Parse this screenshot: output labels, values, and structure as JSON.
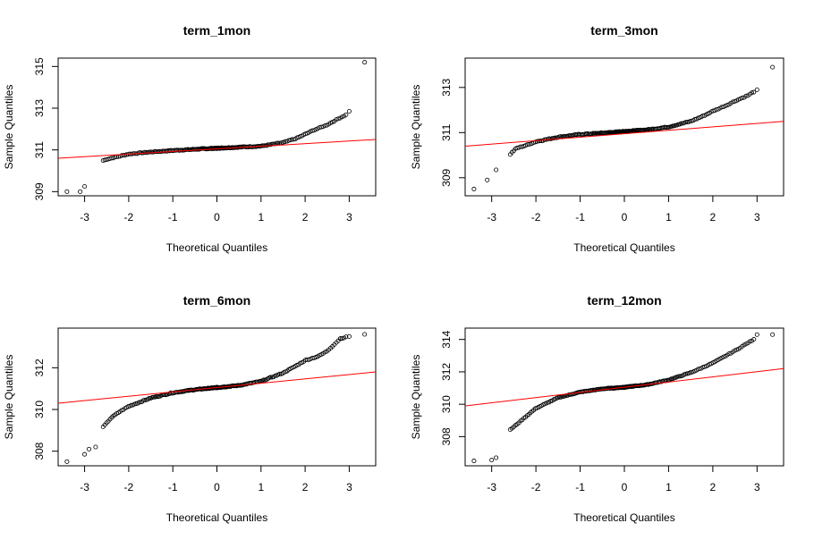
{
  "chart_data": [
    {
      "type": "scatter",
      "title": "term_1mon",
      "xlabel": "Theoretical Quantiles",
      "ylabel": "Sample Quantiles",
      "xlim": [
        -3.6,
        3.6
      ],
      "ylim": [
        308.8,
        315.4
      ],
      "xticks": [
        -3,
        -2,
        -1,
        0,
        1,
        2,
        3
      ],
      "yticks": [
        309,
        311,
        313,
        315
      ],
      "refline": {
        "color": "#ff0000",
        "p1": [
          -3.6,
          310.6
        ],
        "p2": [
          3.6,
          311.5
        ]
      },
      "shape": [
        [
          -3.4,
          309.0
        ],
        [
          -3.1,
          309.0
        ],
        [
          -3.0,
          309.25
        ],
        [
          -2.9,
          310.05
        ],
        [
          -2.7,
          310.4
        ],
        [
          -2.5,
          310.55
        ],
        [
          -2.2,
          310.7
        ],
        [
          -2.0,
          310.8
        ],
        [
          -1.5,
          310.9
        ],
        [
          -1.0,
          310.97
        ],
        [
          -0.5,
          311.03
        ],
        [
          0.0,
          311.08
        ],
        [
          0.5,
          311.13
        ],
        [
          1.0,
          311.18
        ],
        [
          1.5,
          311.35
        ],
        [
          1.8,
          311.55
        ],
        [
          2.0,
          311.75
        ],
        [
          2.2,
          311.95
        ],
        [
          2.5,
          312.2
        ],
        [
          2.8,
          312.55
        ],
        [
          3.0,
          312.75
        ],
        [
          3.35,
          315.2
        ]
      ],
      "outliers": [
        [
          -3.4,
          309.0
        ],
        [
          -3.1,
          309.0
        ],
        [
          -3.0,
          309.25
        ],
        [
          3.0,
          312.85
        ],
        [
          3.35,
          315.2
        ]
      ]
    },
    {
      "type": "scatter",
      "title": "term_3mon",
      "xlabel": "Theoretical Quantiles",
      "ylabel": "Sample Quantiles",
      "xlim": [
        -3.6,
        3.6
      ],
      "ylim": [
        308.2,
        314.3
      ],
      "xticks": [
        -3,
        -2,
        -1,
        0,
        1,
        2,
        3
      ],
      "yticks": [
        309,
        311,
        313
      ],
      "refline": {
        "color": "#ff0000",
        "p1": [
          -3.6,
          310.4
        ],
        "p2": [
          3.6,
          311.5
        ]
      },
      "shape": [
        [
          -3.4,
          308.5
        ],
        [
          -3.1,
          308.9
        ],
        [
          -2.9,
          309.35
        ],
        [
          -2.7,
          309.5
        ],
        [
          -2.6,
          310.0
        ],
        [
          -2.45,
          310.3
        ],
        [
          -2.2,
          310.45
        ],
        [
          -2.0,
          310.6
        ],
        [
          -1.5,
          310.8
        ],
        [
          -1.0,
          310.92
        ],
        [
          -0.5,
          310.98
        ],
        [
          0.0,
          311.05
        ],
        [
          0.5,
          311.12
        ],
        [
          1.0,
          311.25
        ],
        [
          1.5,
          311.5
        ],
        [
          1.8,
          311.75
        ],
        [
          2.0,
          311.95
        ],
        [
          2.3,
          312.2
        ],
        [
          2.5,
          312.4
        ],
        [
          2.8,
          312.65
        ],
        [
          3.0,
          312.9
        ],
        [
          3.35,
          313.9
        ]
      ],
      "outliers": [
        [
          -3.4,
          308.5
        ],
        [
          -3.1,
          308.9
        ],
        [
          -2.9,
          309.35
        ],
        [
          3.0,
          312.9
        ],
        [
          3.35,
          313.9
        ]
      ]
    },
    {
      "type": "scatter",
      "title": "term_6mon",
      "xlabel": "Theoretical Quantiles",
      "ylabel": "Sample Quantiles",
      "xlim": [
        -3.6,
        3.6
      ],
      "ylim": [
        307.3,
        313.9
      ],
      "xticks": [
        -3,
        -2,
        -1,
        0,
        1,
        2,
        3
      ],
      "yticks": [
        308,
        310,
        312
      ],
      "refline": {
        "color": "#ff0000",
        "p1": [
          -3.6,
          310.3
        ],
        "p2": [
          3.6,
          311.8
        ]
      },
      "shape": [
        [
          -3.4,
          307.5
        ],
        [
          -3.0,
          307.85
        ],
        [
          -2.9,
          308.1
        ],
        [
          -2.75,
          308.2
        ],
        [
          -2.6,
          309.1
        ],
        [
          -2.4,
          309.6
        ],
        [
          -2.2,
          309.9
        ],
        [
          -2.0,
          310.15
        ],
        [
          -1.5,
          310.55
        ],
        [
          -1.0,
          310.8
        ],
        [
          -0.5,
          310.95
        ],
        [
          0.0,
          311.05
        ],
        [
          0.5,
          311.15
        ],
        [
          1.0,
          311.35
        ],
        [
          1.5,
          311.75
        ],
        [
          1.8,
          312.1
        ],
        [
          2.0,
          312.35
        ],
        [
          2.3,
          312.55
        ],
        [
          2.5,
          312.8
        ],
        [
          2.8,
          313.4
        ],
        [
          3.0,
          313.5
        ],
        [
          3.35,
          313.6
        ]
      ],
      "outliers": [
        [
          -3.4,
          307.5
        ],
        [
          -3.0,
          307.85
        ],
        [
          -2.9,
          308.1
        ],
        [
          -2.75,
          308.2
        ],
        [
          2.8,
          313.4
        ],
        [
          3.0,
          313.5
        ],
        [
          3.35,
          313.6
        ]
      ]
    },
    {
      "type": "scatter",
      "title": "term_12mon",
      "xlabel": "Theoretical Quantiles",
      "ylabel": "Sample Quantiles",
      "xlim": [
        -3.6,
        3.6
      ],
      "ylim": [
        306.2,
        314.7
      ],
      "xticks": [
        -3,
        -2,
        -1,
        0,
        1,
        2,
        3
      ],
      "yticks": [
        308,
        310,
        312,
        314
      ],
      "refline": {
        "color": "#ff0000",
        "p1": [
          -3.6,
          309.9
        ],
        "p2": [
          3.6,
          312.2
        ]
      },
      "shape": [
        [
          -3.4,
          306.5
        ],
        [
          -3.0,
          306.55
        ],
        [
          -2.9,
          306.7
        ],
        [
          -2.8,
          307.0
        ],
        [
          -2.7,
          308.2
        ],
        [
          -2.5,
          308.6
        ],
        [
          -2.2,
          309.3
        ],
        [
          -2.0,
          309.75
        ],
        [
          -1.5,
          310.4
        ],
        [
          -1.0,
          310.75
        ],
        [
          -0.5,
          310.95
        ],
        [
          0.0,
          311.05
        ],
        [
          0.5,
          311.2
        ],
        [
          1.0,
          311.5
        ],
        [
          1.5,
          311.95
        ],
        [
          1.8,
          312.3
        ],
        [
          2.0,
          312.55
        ],
        [
          2.3,
          313.0
        ],
        [
          2.5,
          313.3
        ],
        [
          2.8,
          313.8
        ],
        [
          3.0,
          314.1
        ],
        [
          3.35,
          314.3
        ]
      ],
      "outliers": [
        [
          -3.4,
          306.5
        ],
        [
          -3.0,
          306.55
        ],
        [
          -2.9,
          306.7
        ],
        [
          3.0,
          314.3
        ],
        [
          3.35,
          314.3
        ]
      ]
    }
  ]
}
